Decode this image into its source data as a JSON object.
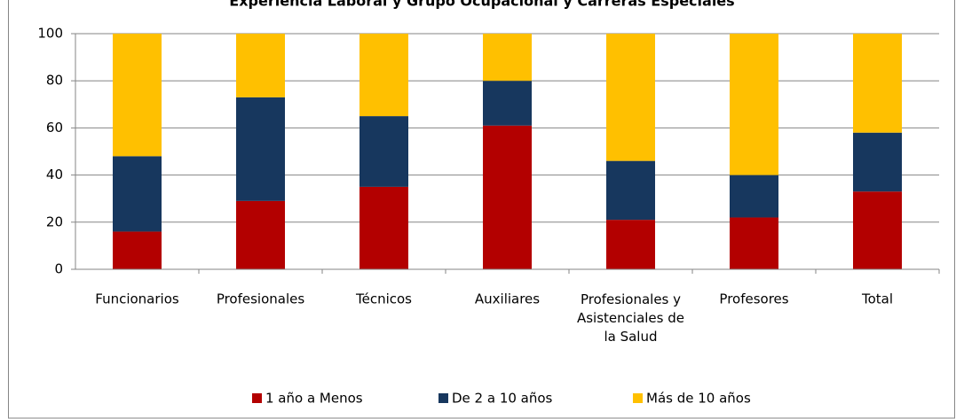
{
  "chart_data": {
    "type": "bar",
    "stacked": true,
    "title": "Experiencia Laboral y Grupo Ocupacional y Carreras Especiales",
    "categories": [
      "Funcionarios",
      "Profesionales",
      "Técnicos",
      "Auxiliares",
      "Profesionales y Asistenciales de la Salud",
      "Profesores",
      "Total"
    ],
    "series": [
      {
        "name": "1 año a Menos",
        "color": "#b30000",
        "values": [
          16,
          29,
          35,
          61,
          21,
          22,
          33
        ]
      },
      {
        "name": "De 2 a 10 años",
        "color": "#17375e",
        "values": [
          32,
          44,
          30,
          19,
          25,
          18,
          25
        ]
      },
      {
        "name": "Más de 10 años",
        "color": "#ffc000",
        "values": [
          52,
          27,
          35,
          20,
          54,
          60,
          42
        ]
      }
    ],
    "ylim": [
      0,
      100
    ],
    "yticks": [
      0,
      20,
      40,
      60,
      80,
      100
    ],
    "grid": true,
    "legend": "bottom"
  }
}
